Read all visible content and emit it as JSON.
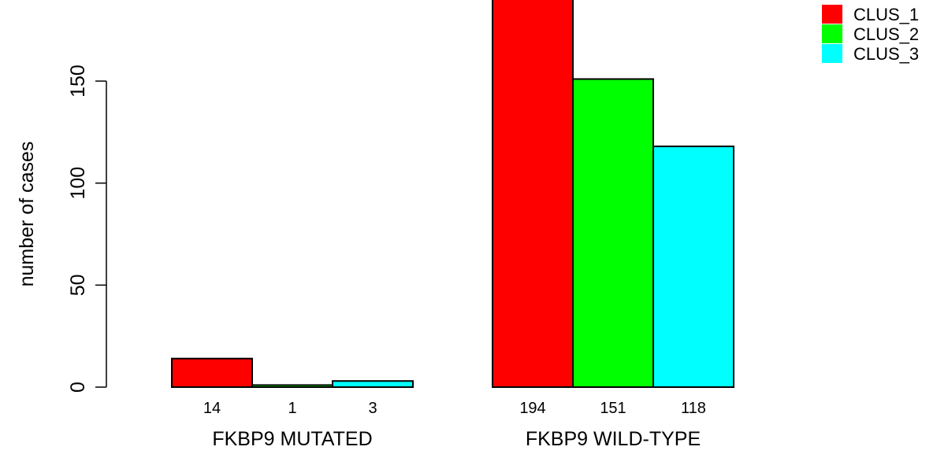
{
  "chart_data": {
    "type": "bar",
    "title": "",
    "xlabel": "",
    "ylabel": "number of cases",
    "ylim": [
      0,
      194
    ],
    "yticks": [
      0,
      50,
      100,
      150
    ],
    "grid": false,
    "legend_position": "top-right",
    "groups": [
      {
        "label": "FKBP9 MUTATED",
        "values": [
          14,
          1,
          3
        ],
        "value_labels": [
          "14",
          "1",
          "3"
        ]
      },
      {
        "label": "FKBP9 WILD-TYPE",
        "values": [
          194,
          151,
          118
        ],
        "value_labels": [
          "194",
          "151",
          "118"
        ]
      }
    ],
    "series": [
      {
        "name": "CLUS_1",
        "color": "#ff0000"
      },
      {
        "name": "CLUS_2",
        "color": "#00ff00"
      },
      {
        "name": "CLUS_3",
        "color": "#00ffff"
      }
    ]
  }
}
